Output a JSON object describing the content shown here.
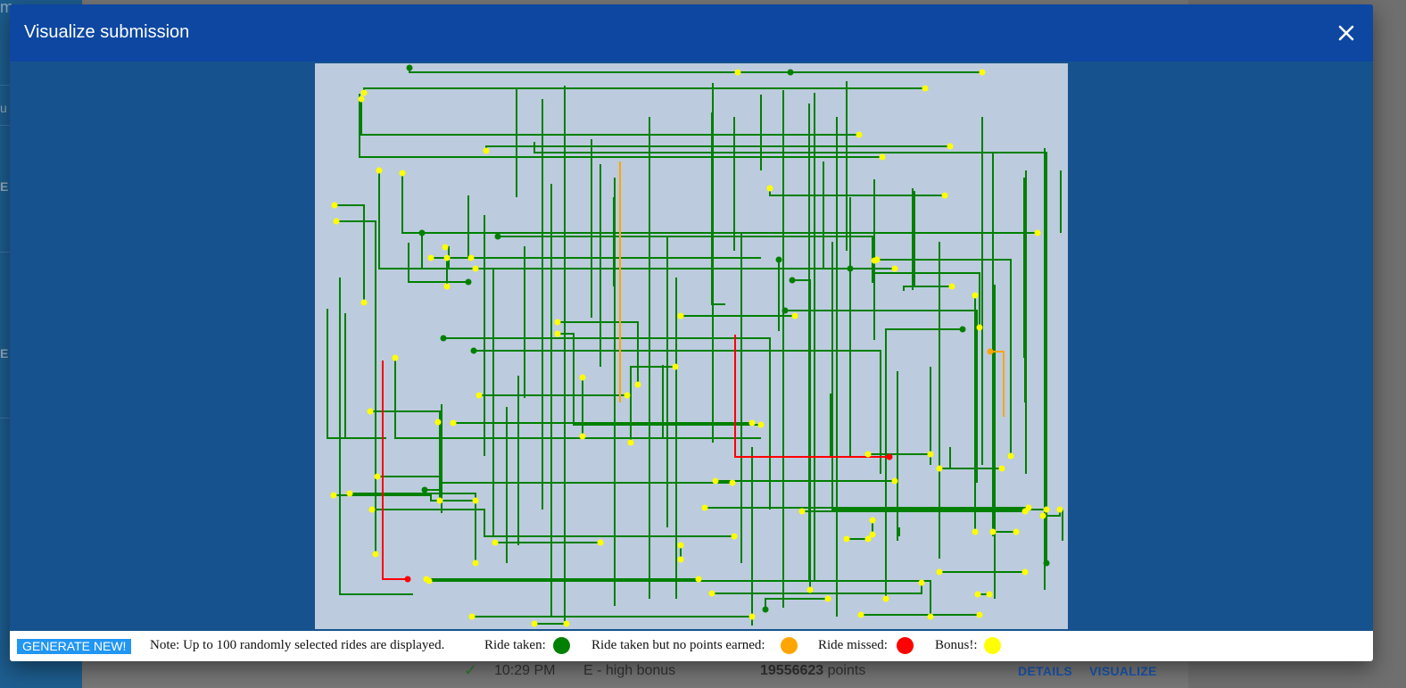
{
  "modal": {
    "title": "Visualize submission",
    "close_icon": "close-icon"
  },
  "legend": {
    "generate_label": "GENERATE NEW!",
    "note": "Note: Up to 100 randomly selected rides are displayed.",
    "ride_taken": "Ride taken:",
    "ride_taken_no_points": "Ride taken but no points earned:",
    "ride_missed": "Ride missed:",
    "bonus": "Bonus!:"
  },
  "colors": {
    "ride_taken": "#008000",
    "ride_no_points": "#ffa500",
    "ride_missed": "#ff0000",
    "bonus": "#ffff00",
    "canvas_bg": "#bccbdd",
    "header": "#0d47a1"
  },
  "background_row": {
    "time": "10:29 PM",
    "name": "E - high bonus",
    "points_value": "19556623",
    "points_unit": " points",
    "details": "DETAILS",
    "visualize": "VISUALIZE"
  },
  "background_glyphs": [
    "m",
    "u",
    "E",
    "E"
  ]
}
